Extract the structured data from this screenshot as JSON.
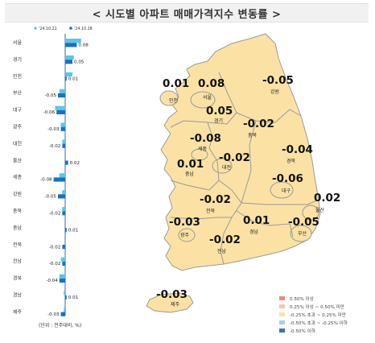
{
  "title": "< 시도별 아파트 매매가격지수 변동률 >",
  "unit_note": "(단위 : 전주대비, %)",
  "colors": {
    "prev_week": "#5bc6ec",
    "this_week": "#1d6fc0",
    "land": "#fbe2a4",
    "border": "#9a9a9a",
    "label_text": "#111111"
  },
  "legend": [
    {
      "label": "0.50% 이상",
      "color": "#f08a7e"
    },
    {
      "label": "0.25% 이상 ~ 0.50% 미만",
      "color": "#f6c6b4"
    },
    {
      "label": "-0.25% 초과 ~ 0.25% 미만",
      "color": "#fbe2a4"
    },
    {
      "label": "-0.50% 초과 ~ -0.25% 이하",
      "color": "#a9cce9"
    },
    {
      "label": "-0.50% 이하",
      "color": "#3b73b4"
    }
  ],
  "chart_data": [
    {
      "type": "bar",
      "orientation": "horizontal",
      "legend_position": "top",
      "categories": [
        "서울",
        "경기",
        "인천",
        "부산",
        "대구",
        "광주",
        "대전",
        "울산",
        "세종",
        "강원",
        "충북",
        "충남",
        "전북",
        "전남",
        "경북",
        "경남",
        "제주"
      ],
      "series": [
        {
          "name": "'24.10.21",
          "values": [
            0.11,
            0.06,
            0.05,
            -0.04,
            -0.07,
            -0.03,
            -0.02,
            0.0,
            -0.04,
            -0.02,
            -0.02,
            0.0,
            0.0,
            -0.03,
            -0.04,
            -0.01,
            -0.01
          ]
        },
        {
          "name": "'24.10.28",
          "values": [
            0.08,
            0.05,
            0.01,
            -0.05,
            -0.06,
            -0.03,
            -0.02,
            0.02,
            -0.08,
            -0.05,
            -0.02,
            0.01,
            -0.02,
            -0.02,
            -0.04,
            0.01,
            -0.03
          ]
        }
      ],
      "data_labels": [
        "0.08",
        "0.05",
        "0.01",
        "-0.05",
        "-0.06",
        "-0.03",
        "-0.02",
        "0.02",
        "-0.08",
        "-0.05",
        "-0.02",
        "0.01",
        "-0.02",
        "-0.02",
        "-0.04",
        "0.01",
        "-0.03"
      ]
    },
    {
      "type": "map",
      "regions": [
        {
          "name": "인천",
          "value": "0.01"
        },
        {
          "name": "서울",
          "value": "0.08"
        },
        {
          "name": "경기",
          "value": "0.05"
        },
        {
          "name": "강원",
          "value": "-0.05"
        },
        {
          "name": "충북",
          "value": "-0.02"
        },
        {
          "name": "세종",
          "value": "-0.08"
        },
        {
          "name": "충남",
          "value": "0.01"
        },
        {
          "name": "대전",
          "value": "-0.02"
        },
        {
          "name": "경북",
          "value": "-0.04"
        },
        {
          "name": "대구",
          "value": "-0.06"
        },
        {
          "name": "전북",
          "value": "-0.02"
        },
        {
          "name": "울산",
          "value": "0.02"
        },
        {
          "name": "광주",
          "value": "-0.03"
        },
        {
          "name": "경남",
          "value": "0.01"
        },
        {
          "name": "부산",
          "value": "-0.05"
        },
        {
          "name": "전남",
          "value": "-0.02"
        },
        {
          "name": "제주",
          "value": "-0.03"
        }
      ]
    }
  ]
}
